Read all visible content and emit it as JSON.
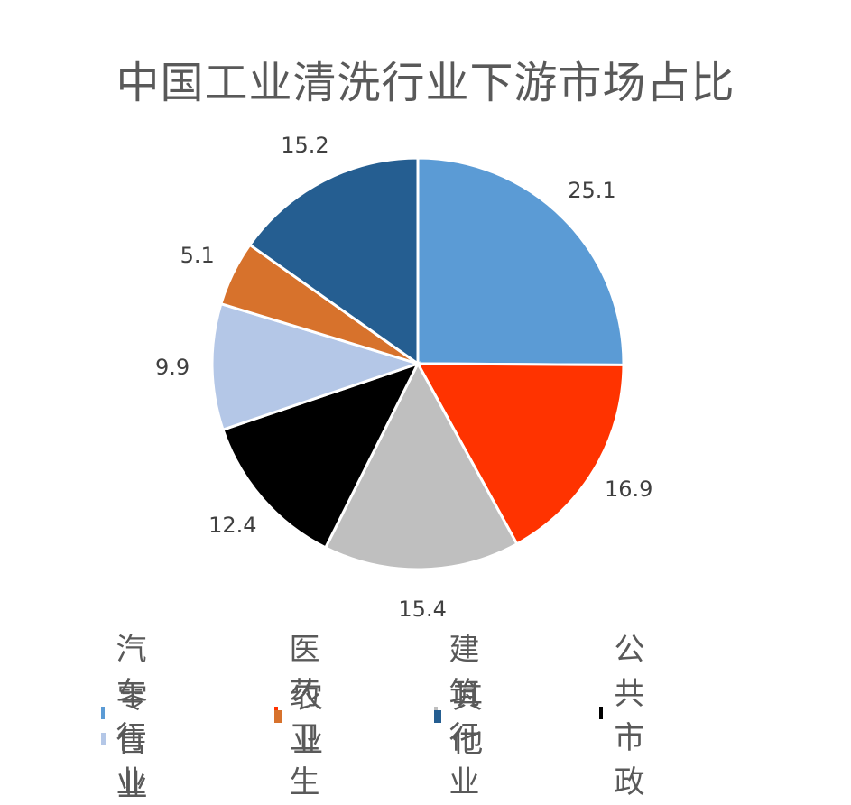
{
  "chart_data": {
    "type": "pie",
    "title": "中国工业清洗行业下游市场占比",
    "categories": [
      "汽车行业",
      "医药卫生",
      "建筑行业",
      "公共市政",
      "零售业",
      "农业",
      "其他"
    ],
    "values": [
      25.1,
      16.9,
      15.4,
      12.4,
      9.9,
      5.1,
      15.2
    ],
    "colors": [
      "#5B9BD5",
      "#FF3300",
      "#BFBFBF",
      "#000000",
      "#B4C7E7",
      "#D7722C",
      "#255E91"
    ],
    "data_labels": [
      "25.1",
      "16.9",
      "15.4",
      "12.4",
      "9.9",
      "5.1",
      "15.2"
    ],
    "start_angle": "12 o'clock, clockwise",
    "legend_position": "bottom"
  },
  "legend": [
    {
      "label": "汽车行业",
      "color": "#5B9BD5"
    },
    {
      "label": "医药卫生",
      "color": "#FF3300"
    },
    {
      "label": "建筑行业",
      "color": "#BFBFBF"
    },
    {
      "label": "公共市政",
      "color": "#000000"
    },
    {
      "label": "零售业",
      "color": "#B4C7E7"
    },
    {
      "label": "农业",
      "color": "#D7722C"
    },
    {
      "label": "其他",
      "color": "#255E91"
    }
  ]
}
